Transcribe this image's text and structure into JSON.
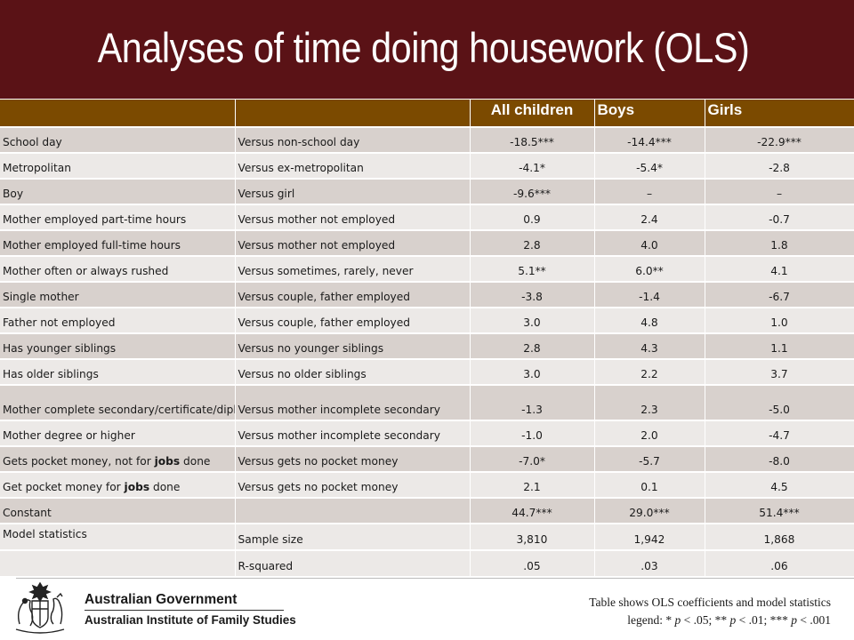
{
  "slide": {
    "title": "Analyses of time doing housework (OLS)"
  },
  "table": {
    "headers": [
      "",
      "",
      "All children",
      "Boys",
      "Girls"
    ],
    "rows": [
      {
        "c1": "School day",
        "c2": "Versus non-school day",
        "all": "-18.5***",
        "boys": "-14.4***",
        "girls": "-22.9***"
      },
      {
        "c1": "Metropolitan",
        "c2": "Versus ex-metropolitan",
        "all": "-4.1*",
        "boys": "-5.4*",
        "girls": "-2.8"
      },
      {
        "c1": "Boy",
        "c2": "Versus girl",
        "all": "-9.6***",
        "boys": "–",
        "girls": "–"
      },
      {
        "c1": "Mother employed part-time hours",
        "c2": "Versus mother not employed",
        "all": "0.9",
        "boys": "2.4",
        "girls": "-0.7"
      },
      {
        "c1": "Mother employed full-time hours",
        "c2": "Versus mother not employed",
        "all": "2.8",
        "boys": "4.0",
        "girls": "1.8"
      },
      {
        "c1": "Mother often or always rushed",
        "c2": "Versus sometimes, rarely, never",
        "all": "5.1**",
        "boys": "6.0**",
        "girls": "4.1"
      },
      {
        "c1": "Single mother",
        "c2": "Versus couple, father employed",
        "all": "-3.8",
        "boys": "-1.4",
        "girls": "-6.7"
      },
      {
        "c1": "Father not employed",
        "c2": "Versus couple, father employed",
        "all": "3.0",
        "boys": "4.8",
        "girls": "1.0"
      },
      {
        "c1": "Has younger siblings",
        "c2": "Versus no younger siblings",
        "all": "2.8",
        "boys": "4.3",
        "girls": "1.1"
      },
      {
        "c1": "Has older siblings",
        "c2": "Versus no older siblings",
        "all": "3.0",
        "boys": "2.2",
        "girls": "3.7"
      },
      {
        "c1": "Mother complete secondary/certificate/diploma",
        "c2": "Versus mother incomplete secondary",
        "all": "-1.3",
        "boys": "2.3",
        "girls": "-5.0"
      },
      {
        "c1": "Mother degree or higher",
        "c2": "Versus mother incomplete secondary",
        "all": "-1.0",
        "boys": "2.0",
        "girls": "-4.7"
      },
      {
        "c1_pre": "Gets pocket money, not for ",
        "c1_bold": "jobs",
        "c1_post": " done",
        "c2": "Versus gets no pocket money",
        "all": "-7.0*",
        "boys": "-5.7",
        "girls": "-8.0"
      },
      {
        "c1_pre": "Get pocket money for ",
        "c1_bold": "jobs",
        "c1_post": " done",
        "c2": "Versus gets no pocket money",
        "all": "2.1",
        "boys": "0.1",
        "girls": "4.5"
      },
      {
        "c1": "Constant",
        "c2": "",
        "all": "44.7***",
        "boys": "29.0***",
        "girls": "51.4***"
      },
      {
        "c1": "Model statistics",
        "c2": "Sample size",
        "all": "3,810",
        "boys": "1,942",
        "girls": "1,868"
      },
      {
        "c1": "",
        "c2": "R-squared",
        "all": ".05",
        "boys": ".03",
        "girls": ".06"
      }
    ]
  },
  "footer": {
    "gov_name": "Australian Government",
    "institute_name": "Australian Institute of Family Studies",
    "note_line1": "Table shows OLS coefficients and model statistics",
    "note_legend_prefix": "legend: * ",
    "note_p": "p",
    "note_a": " < .05; ** ",
    "note_b": " < .01; *** ",
    "note_c": " < .001"
  },
  "logo_icon": "coat-of-arms-icon"
}
